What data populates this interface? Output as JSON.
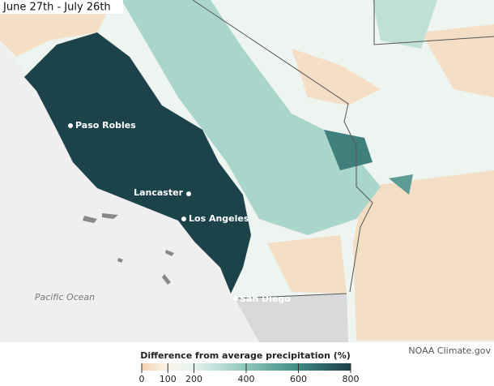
{
  "header": {
    "title": "June 27th - July 26th"
  },
  "map": {
    "cities": [
      "Paso Robles",
      "Lancaster",
      "Los Angeles",
      "San Diego"
    ],
    "ocean_label": "Pacific Ocean",
    "credit": "NOAA Climate.gov"
  },
  "legend": {
    "title": "Difference from average precipitation (%)",
    "lim": [
      0,
      800
    ],
    "ticks": [
      0,
      100,
      200,
      400,
      600,
      800
    ]
  }
}
